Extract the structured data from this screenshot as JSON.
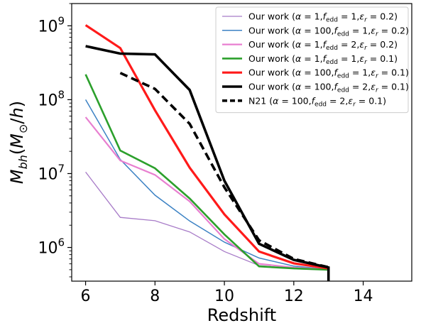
{
  "chart_data": {
    "type": "line",
    "xlabel": "Redshift",
    "ylabel": "M_bh (M⊙/h)",
    "xlim": [
      5.6,
      15.4
    ],
    "ylim": [
      350000,
      2000000000
    ],
    "yscale": "log",
    "xticks": [
      6,
      8,
      10,
      12,
      14
    ],
    "xtick_labels": [
      "6",
      "8",
      "10",
      "12",
      "14"
    ],
    "yticks": [
      1000000,
      10000000,
      100000000,
      1000000000
    ],
    "ytick_labels": [
      {
        "base": "10",
        "exp": "6"
      },
      {
        "base": "10",
        "exp": "7"
      },
      {
        "base": "10",
        "exp": "8"
      },
      {
        "base": "10",
        "exp": "9"
      }
    ],
    "legend_position": "top-right",
    "series": [
      {
        "name": "Our work (α = 1,f_edd = 1,ε_r = 0.2)",
        "legend": {
          "prefix": "Our work (",
          "a": "1",
          "f": "1",
          "e": "0.2"
        },
        "color": "#a87cc8",
        "width": 1.3,
        "dash": "",
        "x": [
          6,
          7,
          8,
          9,
          10,
          11,
          12,
          13
        ],
        "y": [
          10500000,
          2550000,
          2300000,
          1620000,
          880000,
          570000,
          515000,
          495000
        ]
      },
      {
        "name": "Our work (α = 100,f_edd = 1,ε_r = 0.2)",
        "legend": {
          "prefix": "Our work (",
          "a": "100",
          "f": "1",
          "e": "0.2"
        },
        "color": "#3c82c4",
        "width": 1.5,
        "dash": "",
        "x": [
          6,
          7,
          8,
          9,
          10,
          11,
          12,
          13
        ],
        "y": [
          100000000,
          15500000,
          5100000,
          2280000,
          1180000,
          720000,
          560000,
          505000
        ]
      },
      {
        "name": "Our work (α = 1,f_edd = 2,ε_r = 0.2)",
        "legend": {
          "prefix": "Our work (",
          "a": "1",
          "f": "2",
          "e": "0.2"
        },
        "color": "#e87fd0",
        "width": 2.2,
        "dash": "",
        "x": [
          6,
          7,
          8,
          9,
          10,
          11,
          12,
          13
        ],
        "y": [
          58000000,
          15000000,
          9600000,
          4200000,
          1300000,
          600000,
          535000,
          505000
        ]
      },
      {
        "name": "Our work (α = 1,f_edd = 1,ε_r = 0.1)",
        "legend": {
          "prefix": "Our work (",
          "a": "1",
          "f": "1",
          "e": "0.1"
        },
        "color": "#2ca02c",
        "width": 2.6,
        "dash": "",
        "x": [
          6,
          7,
          8,
          9,
          10,
          11,
          12,
          13
        ],
        "y": [
          220000000,
          20500000,
          11800000,
          4600000,
          1500000,
          555000,
          520000,
          500000
        ]
      },
      {
        "name": "Our work (α = 100,f_edd = 1,ε_r = 0.1)",
        "legend": {
          "prefix": "Our work (",
          "a": "100",
          "f": "1",
          "e": "0.1"
        },
        "color": "#ff1a1a",
        "width": 3.2,
        "dash": "",
        "x": [
          6,
          7,
          8,
          9,
          10,
          11,
          12,
          13
        ],
        "y": [
          1020000000,
          500000000,
          72000000,
          12000000,
          2800000,
          880000,
          610000,
          520000
        ]
      },
      {
        "name": "Our work (α = 100,f_edd = 2,ε_r = 0.1)",
        "legend": {
          "prefix": "Our work (",
          "a": "100",
          "f": "2",
          "e": "0.1"
        },
        "color": "#000000",
        "width": 3.6,
        "dash": "",
        "x": [
          6,
          7,
          8,
          9,
          10,
          11,
          12,
          13,
          13
        ],
        "y": [
          530000000,
          420000000,
          410000000,
          135000000,
          8000000,
          1120000,
          680000,
          535000,
          350000
        ]
      },
      {
        "name": "N21 (α = 100,f_edd = 2,ε_r = 0.1)",
        "legend": {
          "prefix": "N21 (",
          "a": "100",
          "f": "2",
          "e": "0.1"
        },
        "color": "#000000",
        "width": 3.6,
        "dash": "11,6",
        "x": [
          7,
          8,
          9,
          10,
          11,
          12,
          13
        ],
        "y": [
          230000000,
          140000000,
          47000000,
          6500000,
          1250000,
          700000,
          540000
        ]
      }
    ]
  }
}
